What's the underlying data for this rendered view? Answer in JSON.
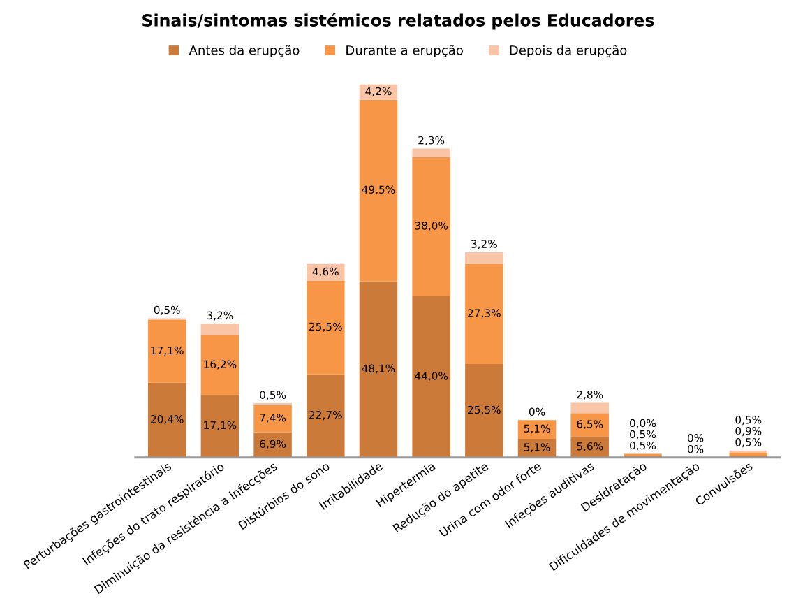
{
  "chart_data": {
    "type": "bar",
    "stacked": true,
    "title": "Sinais/sintomas sistémicos relatados pelos Educadores",
    "legend": "top",
    "categories": [
      "Perturbações gastrointestinais",
      "Infeções do trato respiratório",
      "Diminuição da resistência a infecções",
      "Distúrbios do sono",
      "Irritabilidade",
      "Hipertermia",
      "Redução do apetite",
      "Urina com odor forte",
      "Infeções auditivas",
      "Desidratação",
      "Dificuldades de movimentação",
      "Convulsões"
    ],
    "series": [
      {
        "name": "Antes da erupção",
        "color": "#cc7a3a",
        "values": [
          20.4,
          17.1,
          6.9,
          22.7,
          48.1,
          44.0,
          25.5,
          5.1,
          5.6,
          0.5,
          0,
          0.5
        ],
        "value_labels": [
          "20,4%",
          "17,1%",
          "6,9%",
          "22,7%",
          "48,1%",
          "44,0%",
          "25,5%",
          "5,1%",
          "5,6%",
          "0,5%",
          "0%",
          "0,5%"
        ]
      },
      {
        "name": "Durante a erupção",
        "color": "#f79646",
        "values": [
          17.1,
          16.2,
          7.4,
          25.5,
          49.5,
          38.0,
          27.3,
          5.1,
          6.5,
          0.5,
          0,
          0.9
        ],
        "value_labels": [
          "17,1%",
          "16,2%",
          "7,4%",
          "25,5%",
          "49,5%",
          "38,0%",
          "27,3%",
          "5,1%",
          "6,5%",
          "0,5%",
          null,
          "0,9%"
        ]
      },
      {
        "name": "Depois da erupção",
        "color": "#fac4a6",
        "values": [
          0.5,
          3.2,
          0.5,
          4.6,
          4.2,
          2.3,
          3.2,
          0,
          2.8,
          0.0,
          0,
          0.5
        ],
        "value_labels": [
          "0,5%",
          "3,2%",
          "0,5%",
          "4,6%",
          "4,2%",
          "2,3%",
          "3,2%",
          "0%",
          "2,8%",
          "0,0%",
          "0%",
          "0,5%"
        ]
      }
    ]
  }
}
